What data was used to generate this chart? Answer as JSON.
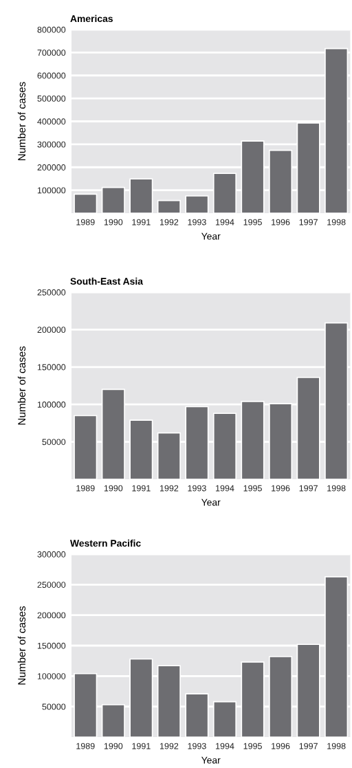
{
  "chart_data": [
    {
      "type": "bar",
      "title": "Americas",
      "xlabel": "Year",
      "ylabel": "Number of cases",
      "categories": [
        "1989",
        "1990",
        "1991",
        "1992",
        "1993",
        "1994",
        "1995",
        "1996",
        "1997",
        "1998"
      ],
      "values": [
        83000,
        112000,
        149000,
        55000,
        75000,
        173000,
        314000,
        274000,
        393000,
        717000
      ],
      "color": "#6d6d71",
      "ylim": [
        0,
        800000
      ],
      "yticks": [
        100000,
        200000,
        300000,
        400000,
        500000,
        600000,
        700000,
        800000
      ],
      "grid": "y"
    },
    {
      "type": "bar",
      "title": "South-East Asia",
      "xlabel": "Year",
      "ylabel": "Number of cases",
      "categories": [
        "1989",
        "1990",
        "1991",
        "1992",
        "1993",
        "1994",
        "1995",
        "1996",
        "1997",
        "1998"
      ],
      "values": [
        85000,
        120000,
        79000,
        62000,
        97000,
        88000,
        104000,
        101000,
        136000,
        209000
      ],
      "color": "#6d6d71",
      "ylim": [
        0,
        250000
      ],
      "yticks": [
        50000,
        100000,
        150000,
        200000,
        250000
      ],
      "grid": "y"
    },
    {
      "type": "bar",
      "title": "Western Pacific",
      "xlabel": "Year",
      "ylabel": "Number of cases",
      "categories": [
        "1989",
        "1990",
        "1991",
        "1992",
        "1993",
        "1994",
        "1995",
        "1996",
        "1997",
        "1998"
      ],
      "values": [
        104000,
        53000,
        128000,
        117000,
        71000,
        58000,
        123000,
        132000,
        152000,
        263000
      ],
      "color": "#6d6d71",
      "ylim": [
        0,
        300000
      ],
      "yticks": [
        50000,
        100000,
        150000,
        200000,
        250000,
        300000
      ],
      "grid": "y"
    }
  ]
}
